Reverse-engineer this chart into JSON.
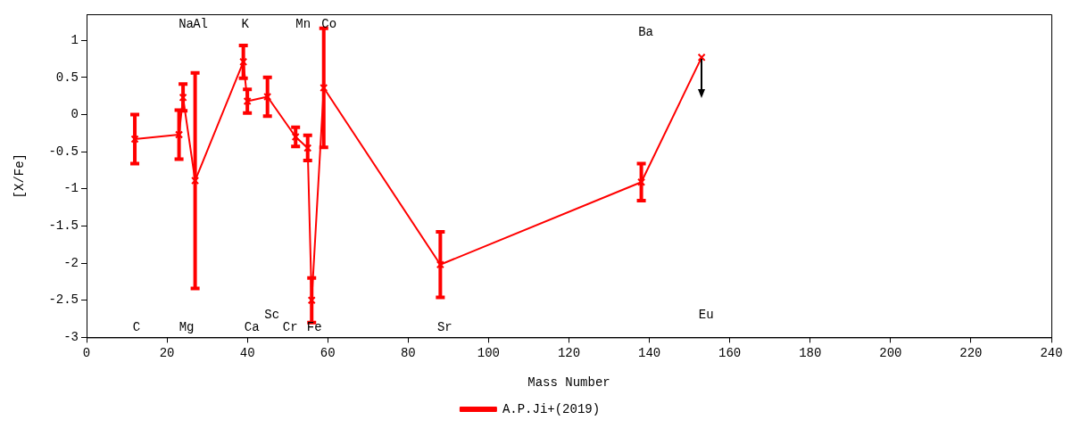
{
  "chart_data": {
    "type": "line",
    "xlabel": "Mass Number",
    "ylabel": "[X/Fe]",
    "x": [
      12,
      23,
      24,
      27,
      39,
      40,
      45,
      52,
      55,
      56,
      59,
      88,
      138,
      153
    ],
    "series": [
      {
        "name": "A.P.Ji+(2019)",
        "color": "#ff0000",
        "values": [
          -0.33,
          -0.27,
          0.23,
          -0.89,
          0.71,
          0.18,
          0.24,
          -0.3,
          -0.45,
          -2.5,
          0.36,
          -2.02,
          -0.91,
          0.77
        ],
        "errors": [
          0.33,
          0.33,
          0.18,
          1.45,
          0.22,
          0.16,
          0.26,
          0.13,
          0.17,
          0.3,
          0.8,
          0.44,
          0.25,
          null
        ]
      }
    ],
    "xlim": [
      0,
      240
    ],
    "xticks": [
      0,
      20,
      40,
      60,
      80,
      100,
      120,
      140,
      160,
      180,
      200,
      220,
      240
    ],
    "ylim": [
      -3,
      1.35
    ],
    "yticks": [
      -3,
      -2.5,
      -2,
      -1.5,
      -1,
      -0.5,
      0,
      0.5,
      1
    ],
    "grid": false,
    "legend": "bottom",
    "marker": "cross",
    "line_style": "solid",
    "annotations": [
      "C",
      "Na",
      "Mg",
      "Al",
      "K",
      "Ca",
      "Sc",
      "Cr",
      "Mn",
      "Fe",
      "Co",
      "Sr",
      "Ba",
      "Eu"
    ]
  }
}
